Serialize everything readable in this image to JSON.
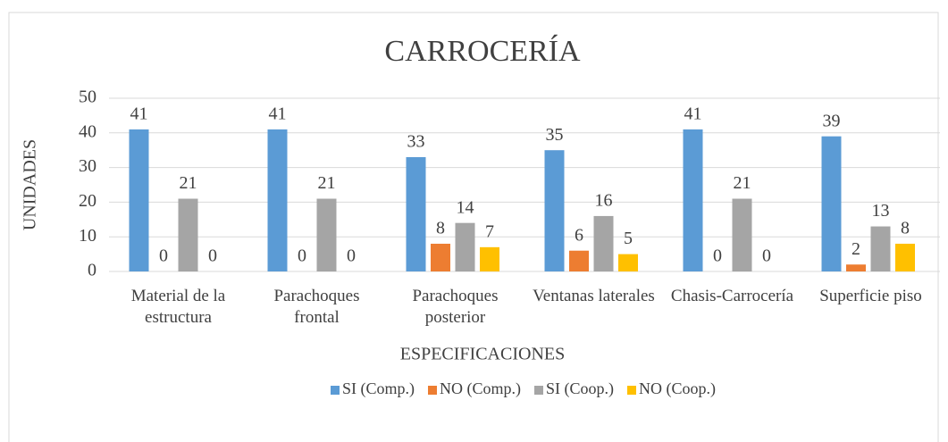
{
  "chart_data": {
    "type": "bar",
    "title": "CARROCERÍA",
    "x_label": "ESPECIFICACIONES",
    "y_label": "UNIDADES",
    "categories": [
      "Material de la estructura",
      "Parachoques frontal",
      "Parachoques posterior",
      "Ventanas laterales",
      "Chasis-Carrocería",
      "Superficie piso"
    ],
    "series": [
      {
        "name": "SI (Comp.)",
        "color": "#5b9bd5",
        "values": [
          41,
          41,
          33,
          35,
          41,
          39
        ]
      },
      {
        "name": "NO (Comp.)",
        "color": "#ed7d31",
        "values": [
          0,
          0,
          8,
          6,
          0,
          2
        ]
      },
      {
        "name": "SI (Coop.)",
        "color": "#a5a5a5",
        "values": [
          21,
          21,
          14,
          16,
          21,
          13
        ]
      },
      {
        "name": "NO (Coop.)",
        "color": "#ffc000",
        "values": [
          0,
          0,
          7,
          5,
          0,
          8
        ]
      }
    ],
    "ylim": [
      0,
      50
    ],
    "yticks": [
      0,
      10,
      20,
      30,
      40,
      50
    ],
    "grid": true,
    "legend": "bottom"
  }
}
